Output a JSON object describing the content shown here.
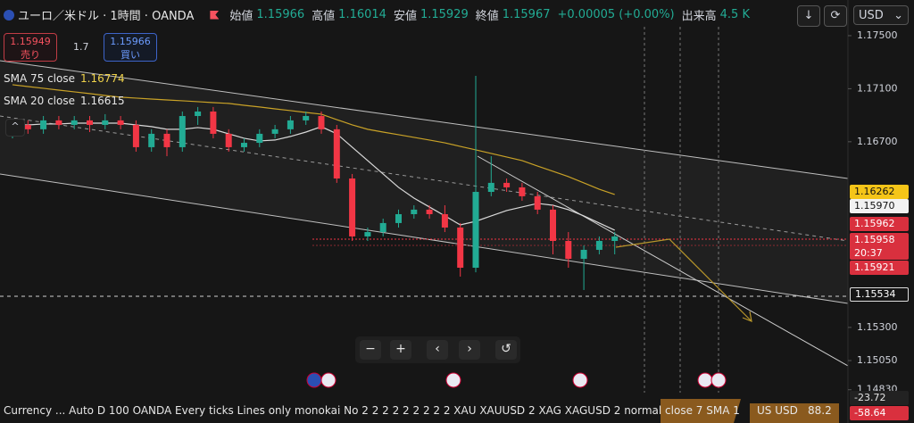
{
  "header": {
    "symbol": "ユーロ／米ドル · 1時間 · OANDA",
    "ohlc": [
      {
        "label": "始値",
        "value": "1.15966"
      },
      {
        "label": "高値",
        "value": "1.16014"
      },
      {
        "label": "安値",
        "value": "1.15929"
      },
      {
        "label": "終値",
        "value": "1.15967"
      }
    ],
    "change": "+0.00005 (+0.00%)",
    "volume_label": "出来高",
    "volume": "4.5 K",
    "currency": "USD"
  },
  "trade": {
    "sell_price": "1.15949",
    "sell_label": "売り",
    "spread": "1.7",
    "buy_price": "1.15966",
    "buy_label": "買い"
  },
  "price_axis": {
    "badges": [
      "1.16262",
      "1.15970",
      "1.15962",
      "1.15958",
      "1.15921",
      "1.15534"
    ],
    "countdown": "20:37",
    "lower": [
      "-23.72",
      "-58.64"
    ]
  },
  "status_bar": {
    "text": "Currency ... Auto D 100 OANDA Every ticks Lines only monokai No 2 2 2 2 2 2 2 2 2 XAU XAUUSD 2 XAG XAGUSD 2 normal close 7 SMA 1",
    "symbol": "US USD",
    "value": "88.2"
  },
  "chart_data": {
    "type": "candlestick",
    "open": [
      1.1676,
      1.16827,
      1.16794,
      1.16861,
      1.16827,
      1.16861,
      1.16827,
      1.16861,
      1.16827,
      1.16659,
      1.1676,
      1.16659,
      1.16894,
      1.16928,
      1.1676,
      1.16659,
      1.16692,
      1.1676,
      1.16794,
      1.16861,
      1.16894,
      1.16794,
      1.16423,
      1.15986,
      1.16019,
      1.16087,
      1.16154,
      1.16188,
      1.16154,
      1.16053,
      1.1575,
      1.16322,
      1.1639,
      1.16356,
      1.16289,
      1.16188,
      1.15952,
      1.15817,
      1.15885,
      1.15952
    ],
    "high": [
      1.16861,
      1.16861,
      1.16894,
      1.16894,
      1.16894,
      1.16894,
      1.16908,
      1.16894,
      1.16861,
      1.16794,
      1.16794,
      1.16928,
      1.16962,
      1.16962,
      1.16794,
      1.16726,
      1.16794,
      1.16827,
      1.16894,
      1.16928,
      1.16928,
      1.16827,
      1.16457,
      1.16053,
      1.1612,
      1.16188,
      1.16221,
      1.16221,
      1.16221,
      1.16087,
      1.17197,
      1.16591,
      1.16423,
      1.1639,
      1.16322,
      1.16221,
      1.16019,
      1.15918,
      1.15986,
      1.16019
    ],
    "low": [
      1.16726,
      1.1676,
      1.1676,
      1.16794,
      1.16794,
      1.16773,
      1.16794,
      1.16794,
      1.16625,
      1.16625,
      1.16591,
      1.16625,
      1.16827,
      1.16726,
      1.16625,
      1.16625,
      1.16659,
      1.16726,
      1.1676,
      1.16827,
      1.1676,
      1.1639,
      1.15952,
      1.15952,
      1.15986,
      1.16053,
      1.1612,
      1.1612,
      1.16019,
      1.15683,
      1.15716,
      1.16289,
      1.16322,
      1.16255,
      1.16154,
      1.15851,
      1.1575,
      1.15582,
      1.15851,
      1.15851
    ],
    "close": [
      1.16827,
      1.16794,
      1.16861,
      1.16827,
      1.16861,
      1.16827,
      1.16861,
      1.16827,
      1.16659,
      1.1676,
      1.16659,
      1.16894,
      1.16928,
      1.1676,
      1.16659,
      1.16692,
      1.1676,
      1.16794,
      1.16861,
      1.16894,
      1.16794,
      1.16423,
      1.15986,
      1.16019,
      1.16087,
      1.16154,
      1.16188,
      1.16154,
      1.16053,
      1.1575,
      1.16322,
      1.1639,
      1.16356,
      1.16289,
      1.16188,
      1.15952,
      1.15817,
      1.15885,
      1.15952,
      1.15986
    ],
    "up_color": "#22ab94",
    "down_color": "#f23645",
    "series": [
      {
        "name": "SMA 75 close",
        "legend_value": "1.16774",
        "color": "#c9a227",
        "values": [
          1.1713,
          1.17116,
          1.17103,
          1.17089,
          1.17076,
          1.17063,
          1.17049,
          1.17036,
          1.17029,
          1.17022,
          1.17015,
          1.17009,
          1.17002,
          1.16995,
          1.16989,
          1.16975,
          1.16962,
          1.16948,
          1.16935,
          1.16921,
          1.16908,
          1.16867,
          1.16827,
          1.16794,
          1.16773,
          1.16753,
          1.16733,
          1.16713,
          1.16692,
          1.16665,
          1.16639,
          1.16612,
          1.16585,
          1.16558,
          1.16517,
          1.16477,
          1.16437,
          1.1639,
          1.16342,
          1.16302
        ]
      },
      {
        "name": "SMA 20 close",
        "legend_value": "1.16615",
        "color": "#d9d9d9",
        "values": [
          1.16827,
          1.16827,
          1.16834,
          1.16834,
          1.1684,
          1.1684,
          1.1684,
          1.1684,
          1.16827,
          1.16814,
          1.16794,
          1.16794,
          1.16807,
          1.16794,
          1.1676,
          1.16726,
          1.16706,
          1.16713,
          1.1674,
          1.16773,
          1.16814,
          1.1676,
          1.16659,
          1.16558,
          1.16457,
          1.16356,
          1.16275,
          1.16208,
          1.16141,
          1.16073,
          1.161,
          1.16141,
          1.16181,
          1.16208,
          1.16235,
          1.16221,
          1.16188,
          1.16141,
          1.16087,
          1.16033
        ]
      }
    ],
    "ylim": [
      1.14808,
      1.17567
    ],
    "yticks": [
      {
        "value": 1.175,
        "label": "1.17500"
      },
      {
        "value": 1.171,
        "label": "1.17100"
      },
      {
        "value": 1.167,
        "label": "1.16700"
      },
      {
        "value": 1.153,
        "label": "1.15300"
      },
      {
        "value": 1.1505,
        "label": "1.15050"
      },
      {
        "value": 1.1483,
        "label": "1.14830"
      }
    ]
  }
}
